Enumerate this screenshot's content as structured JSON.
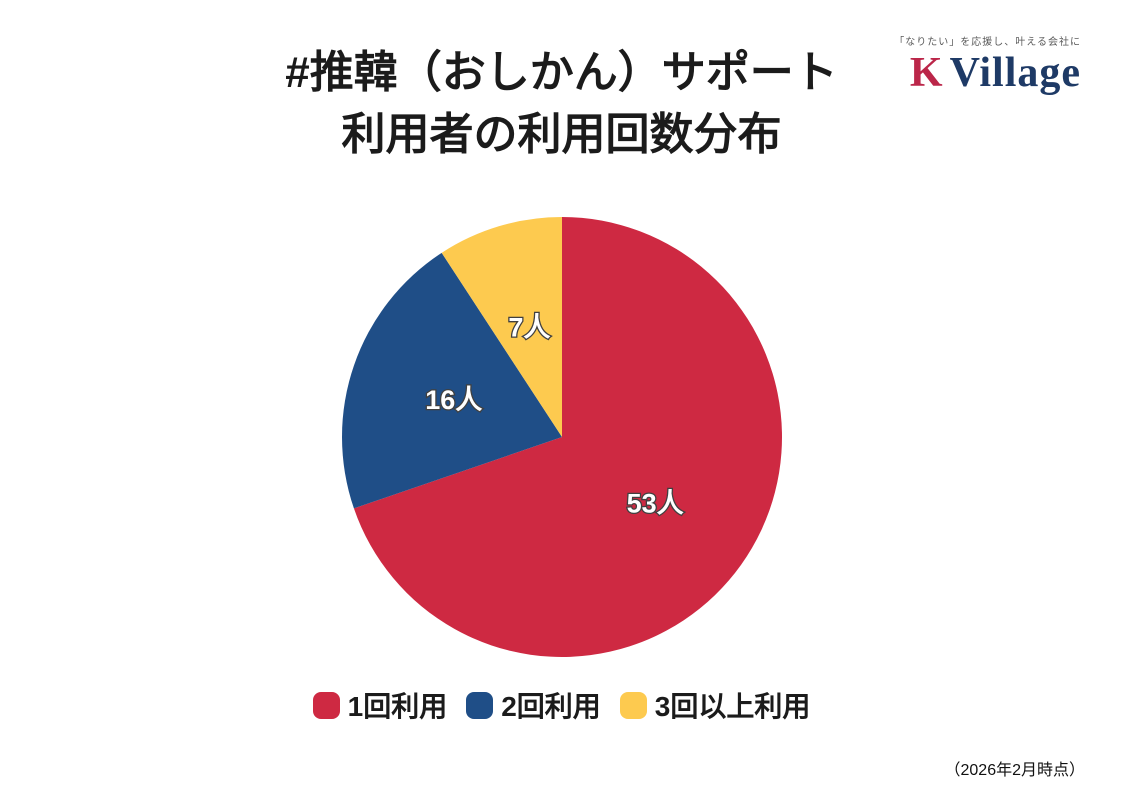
{
  "header": {
    "title_line1": "#推韓（おしかん）サポート",
    "title_line2": "利用者の利用回数分布"
  },
  "logo": {
    "tagline": "「なりたい」を応援し、叶える会社に",
    "brand_k": "K",
    "brand_village": "Village",
    "k_color": "#BB2649",
    "village_color": "#1E3A66",
    "tagline_color": "#5a5a5a"
  },
  "chart_data": {
    "type": "pie",
    "title": "#推韓（おしかん）サポート 利用者の利用回数分布",
    "categories": [
      "1回利用",
      "2回利用",
      "3回以上利用"
    ],
    "values": [
      53,
      16,
      7
    ],
    "total": 76,
    "unit": "人",
    "slice_labels": [
      "53人",
      "16人",
      "7人"
    ],
    "colors": [
      "#CE2942",
      "#1F4E87",
      "#FDCA4F"
    ],
    "start_angle_deg": 0,
    "direction": "clockwise",
    "legend_position": "bottom",
    "slice_label_color": "#ffffff",
    "slice_label_outline_color": "#404040"
  },
  "footnote": {
    "text": "（2026年2月時点）"
  }
}
